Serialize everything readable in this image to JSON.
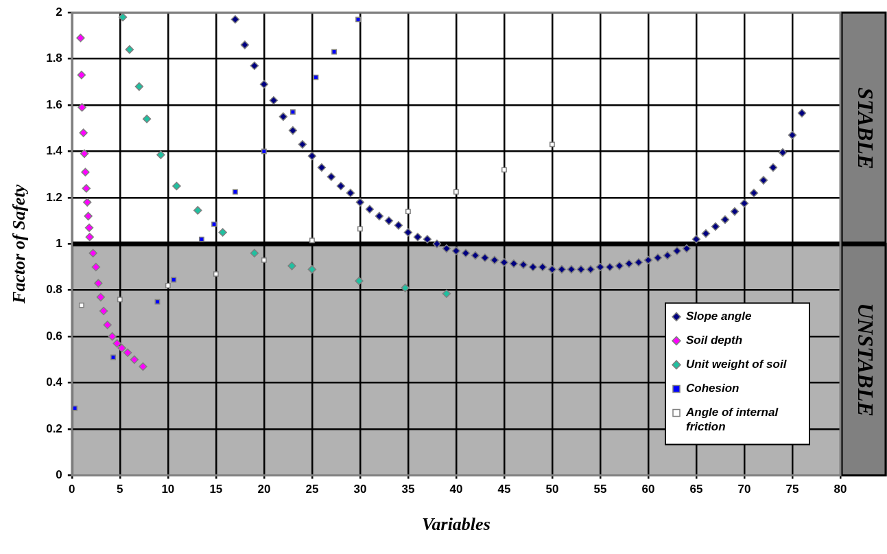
{
  "chart_data": {
    "type": "scatter",
    "xlabel": "Variables",
    "ylabel": "Factor of Safety",
    "xlim": [
      0,
      80
    ],
    "xticks": [
      0,
      5,
      10,
      15,
      20,
      25,
      30,
      35,
      40,
      45,
      50,
      55,
      60,
      65,
      70,
      75,
      80
    ],
    "ylim": [
      0,
      2
    ],
    "yticks": [
      0,
      0.2,
      0.4,
      0.6,
      0.8,
      1,
      1.2,
      1.4,
      1.6,
      1.8,
      2
    ],
    "grid": true,
    "legend": "bottom right",
    "bands": [
      {
        "axis": "y",
        "from": 0,
        "to": 1,
        "label": "UNSTABLE",
        "color": "#b2b2b2"
      }
    ],
    "annotations": [
      "STABLE"
    ],
    "ref_lines": [
      {
        "axis": "y",
        "value": 1,
        "color": "#000000"
      }
    ],
    "series": [
      {
        "name": "Slope angle",
        "color": "#000080",
        "marker": "diamond",
        "x": [
          17,
          18,
          19,
          20,
          21,
          22,
          23,
          24,
          25,
          26,
          27,
          28,
          29,
          30,
          31,
          32,
          33,
          34,
          35,
          36,
          37,
          38,
          39,
          40,
          41,
          42,
          43,
          44,
          45,
          46,
          47,
          48,
          49,
          50,
          51,
          52,
          53,
          54,
          55,
          56,
          57,
          58,
          59,
          60,
          61,
          62,
          63,
          64,
          65,
          66,
          67,
          68,
          69,
          70,
          71,
          72,
          73,
          74,
          75,
          76
        ],
        "values": [
          1.97,
          1.86,
          1.77,
          1.69,
          1.62,
          1.55,
          1.49,
          1.43,
          1.38,
          1.33,
          1.29,
          1.25,
          1.22,
          1.18,
          1.15,
          1.12,
          1.1,
          1.08,
          1.05,
          1.03,
          1.02,
          1.0,
          0.98,
          0.97,
          0.96,
          0.95,
          0.94,
          0.93,
          0.92,
          0.915,
          0.91,
          0.9,
          0.9,
          0.89,
          0.89,
          0.89,
          0.89,
          0.89,
          0.9,
          0.9,
          0.905,
          0.915,
          0.92,
          0.93,
          0.94,
          0.95,
          0.97,
          0.98,
          1.02,
          1.045,
          1.075,
          1.105,
          1.14,
          1.175,
          1.22,
          1.275,
          1.33,
          1.395,
          1.47,
          1.565
        ]
      },
      {
        "name": "Soil depth",
        "color": "#ff00ff",
        "marker": "diamond",
        "x": [
          0.9,
          1.0,
          1.05,
          1.2,
          1.3,
          1.4,
          1.5,
          1.6,
          1.7,
          1.8,
          1.85,
          2.2,
          2.5,
          2.75,
          3.0,
          3.3,
          3.7,
          4.2,
          4.7,
          5.2,
          5.8,
          6.5,
          7.4
        ],
        "values": [
          1.89,
          1.73,
          1.59,
          1.48,
          1.39,
          1.31,
          1.24,
          1.18,
          1.12,
          1.07,
          1.03,
          0.96,
          0.9,
          0.83,
          0.77,
          0.71,
          0.65,
          0.6,
          0.57,
          0.55,
          0.53,
          0.5,
          0.47
        ]
      },
      {
        "name": "Unit weight of soil",
        "color": "#20c0a0",
        "marker": "diamond",
        "x": [
          5.3,
          6.0,
          7.0,
          7.8,
          9.25,
          10.9,
          13.1,
          15.7,
          19,
          22.9,
          25,
          29.9,
          34.7,
          39
        ],
        "values": [
          1.98,
          1.84,
          1.68,
          1.54,
          1.385,
          1.25,
          1.145,
          1.05,
          0.96,
          0.905,
          0.89,
          0.84,
          0.81,
          0.785
        ]
      },
      {
        "name": "Cohesion",
        "color": "#0000ff",
        "marker": "square",
        "x": [
          0.3,
          4.3,
          8.9,
          10.6,
          13.5,
          14.8,
          17,
          20,
          23,
          25.4,
          27.3,
          29.8
        ],
        "values": [
          0.29,
          0.51,
          0.75,
          0.845,
          1.02,
          1.085,
          1.225,
          1.4,
          1.57,
          1.72,
          1.83,
          1.97
        ]
      },
      {
        "name": "Angle of internal friction",
        "color": "#ffffff",
        "marker": "square",
        "x": [
          1,
          5,
          10,
          15,
          20,
          25,
          30,
          35,
          40,
          45,
          50
        ],
        "values": [
          0.735,
          0.76,
          0.82,
          0.87,
          0.93,
          1.015,
          1.065,
          1.14,
          1.225,
          1.32,
          1.43
        ]
      }
    ]
  }
}
